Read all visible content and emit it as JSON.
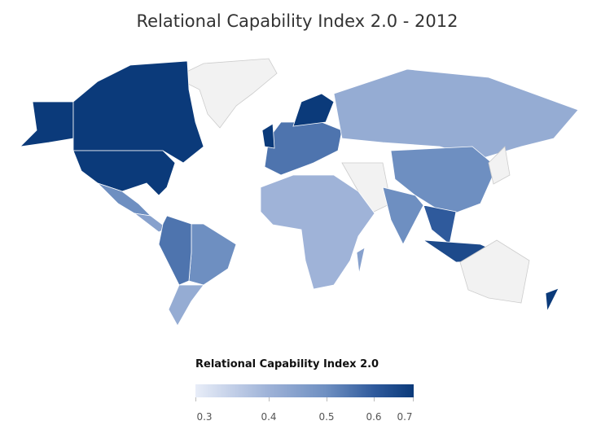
{
  "title": "Relational Capability Index 2.0 - 2012",
  "legend": {
    "title": "Relational Capability Index 2.0",
    "ticks": [
      "0.3",
      "0.4",
      "0.5",
      "0.6",
      "0.7"
    ],
    "colors": {
      "low": "#e8edf8",
      "high": "#0b3a7a",
      "nodata": "#f2f2f2"
    }
  },
  "chart_data": {
    "type": "choropleth",
    "title": "Relational Capability Index 2.0 - 2012",
    "value_range": [
      0.3,
      0.7
    ],
    "regions": [
      {
        "name": "Greenland",
        "value": null
      },
      {
        "name": "Alaska (USA)",
        "value": 0.7
      },
      {
        "name": "Canada",
        "value": 0.7
      },
      {
        "name": "United States",
        "value": 0.7
      },
      {
        "name": "Mexico",
        "value": 0.5
      },
      {
        "name": "Central America",
        "value": 0.45
      },
      {
        "name": "Brazil",
        "value": 0.5
      },
      {
        "name": "Andean South America",
        "value": 0.55
      },
      {
        "name": "Argentina",
        "value": 0.42
      },
      {
        "name": "Europe",
        "value": 0.55
      },
      {
        "name": "Scandinavia",
        "value": 0.7
      },
      {
        "name": "United Kingdom",
        "value": 0.7
      },
      {
        "name": "Russia",
        "value": 0.42
      },
      {
        "name": "Middle East",
        "value": null
      },
      {
        "name": "China",
        "value": 0.5
      },
      {
        "name": "India",
        "value": 0.5
      },
      {
        "name": "Southeast Asia",
        "value": 0.6
      },
      {
        "name": "Indonesia",
        "value": 0.65
      },
      {
        "name": "Japan",
        "value": null
      },
      {
        "name": "Africa",
        "value": 0.4
      },
      {
        "name": "Madagascar",
        "value": 0.45
      },
      {
        "name": "Australia",
        "value": null
      },
      {
        "name": "New Zealand",
        "value": 0.7
      }
    ]
  }
}
